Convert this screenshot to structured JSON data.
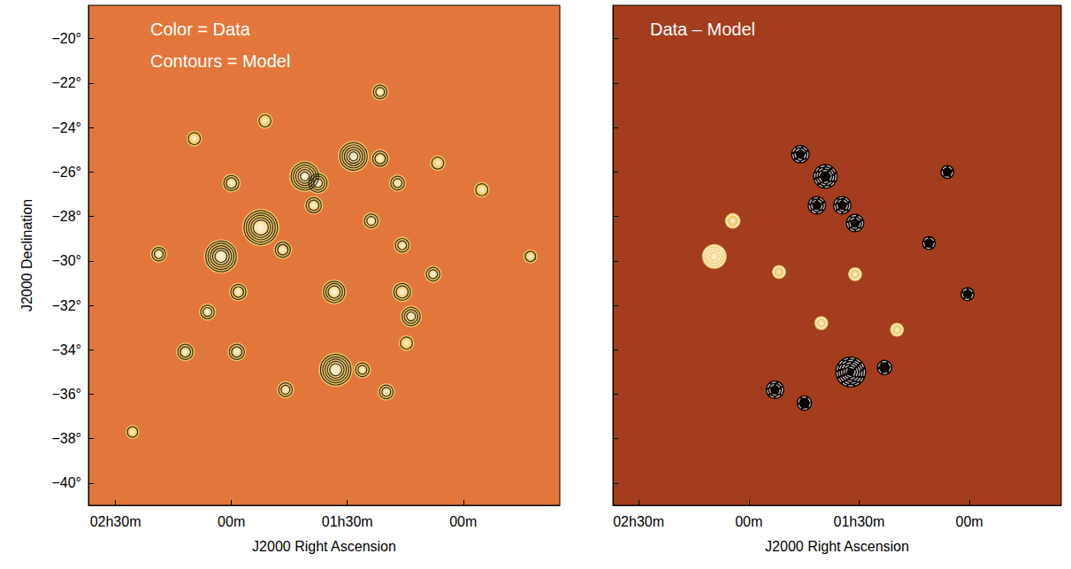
{
  "chart_data": [
    {
      "type": "scatter",
      "annotations": [
        "Color = Data",
        "Contours = Model"
      ],
      "xlabel": "J2000 Right Ascension",
      "ylabel": "J2000 Declination",
      "xlim": [
        157,
        35
      ],
      "xticks": [
        {
          "value": 150,
          "label": "02h30m"
        },
        {
          "value": 120,
          "label": "00m"
        },
        {
          "value": 90,
          "label": "01h30m"
        },
        {
          "value": 60,
          "label": "00m"
        }
      ],
      "ylim": [
        -41,
        -18.5
      ],
      "yticks": [
        {
          "value": -40,
          "label": "−40°"
        },
        {
          "value": -38,
          "label": "−38°"
        },
        {
          "value": -36,
          "label": "−36°"
        },
        {
          "value": -34,
          "label": "−34°"
        },
        {
          "value": -32,
          "label": "−32°"
        },
        {
          "value": -30,
          "label": "−30°"
        },
        {
          "value": -28,
          "label": "−28°"
        },
        {
          "value": -26,
          "label": "−26°"
        },
        {
          "value": -24,
          "label": "−24°"
        },
        {
          "value": -22,
          "label": "−22°"
        },
        {
          "value": -20,
          "label": "−20°"
        }
      ],
      "grid": false,
      "series": [
        {
          "type": "scatter",
          "marker": "circle",
          "color": "#f4cf6a",
          "x": [
            88.4,
            101.0,
            112.4,
            122.7,
            93.4,
            93.0,
            81.5,
            97.6,
            120.0,
            77.0,
            98.7,
            83.8,
            106.7,
            75.8,
            75.8,
            118.2,
            126.2,
            73.5,
            131.9,
            118.6,
            86.1,
            106.0,
            79.9,
            138.8,
            81.5,
            111.3,
            55.2,
            67.8,
            42.6,
            145.6,
            66.6,
            129.6,
            74.7
          ],
          "y": [
            -25.3,
            -26.2,
            -28.5,
            -29.8,
            -31.4,
            -34.9,
            -25.4,
            -26.5,
            -26.5,
            -26.5,
            -27.5,
            -28.2,
            -29.5,
            -29.3,
            -31.4,
            -31.4,
            -32.3,
            -32.5,
            -34.1,
            -34.1,
            -34.9,
            -35.8,
            -35.9,
            -29.7,
            -22.4,
            -23.7,
            -26.8,
            -30.6,
            -29.8,
            -37.7,
            -25.6,
            -24.5,
            -33.7
          ],
          "peak": [
            8,
            8,
            10,
            9,
            6,
            9,
            4,
            5,
            4,
            3.5,
            4,
            3.5,
            4,
            3.5,
            4.5,
            4,
            3.5,
            5,
            4,
            4,
            3.5,
            3.5,
            3.5,
            3.5,
            3.5,
            3,
            3,
            3.5,
            2.5,
            2.5,
            3,
            3,
            3
          ]
        }
      ]
    },
    {
      "type": "scatter",
      "annotations": [
        "Data – Model"
      ],
      "xlabel": "J2000 Right Ascension",
      "xlim": [
        157,
        35
      ],
      "xticks": [
        {
          "value": 150,
          "label": "02h30m"
        },
        {
          "value": 120,
          "label": "00m"
        },
        {
          "value": 90,
          "label": "01h30m"
        },
        {
          "value": 60,
          "label": "00m"
        }
      ],
      "ylim": [
        -41,
        -18.5
      ],
      "yticks": [
        -40,
        -38,
        -36,
        -34,
        -32,
        -30,
        -28,
        -26,
        -24,
        -22,
        -20
      ],
      "tick_labels": "x",
      "grid": false,
      "series": [
        {
          "type": "scatter",
          "marker": "circle",
          "x": [
            129.4,
            92.3,
            106.0,
            99.2,
            94.6,
            101.5,
            91.1,
            112.9,
            104.9,
            83.1,
            124.4,
            111.8,
            100.3,
            91.1,
            79.7,
            66.0,
            60.5,
            71.0
          ],
          "y": [
            -29.8,
            -35.0,
            -25.2,
            -26.2,
            -27.5,
            -27.5,
            -28.3,
            -35.8,
            -36.4,
            -34.8,
            -28.2,
            -30.5,
            -32.8,
            -30.6,
            -33.1,
            -26.0,
            -31.5,
            -29.2
          ],
          "residual": [
            6,
            -8,
            -4,
            -6,
            -4,
            -4,
            -4,
            -4,
            -3,
            -3,
            3,
            2.5,
            2.5,
            2.5,
            2.5,
            -2.5,
            -2.5,
            -2.5
          ],
          "colors": [
            "#f4cf6a",
            "#000000",
            "#000000",
            "#000000",
            "#000000",
            "#000000",
            "#000000",
            "#000000",
            "#000000",
            "#000000",
            "#f4cf6a",
            "#f4cf6a",
            "#f4cf6a",
            "#f4cf6a",
            "#f4cf6a",
            "#000000",
            "#000000",
            "#000000"
          ]
        }
      ]
    }
  ]
}
